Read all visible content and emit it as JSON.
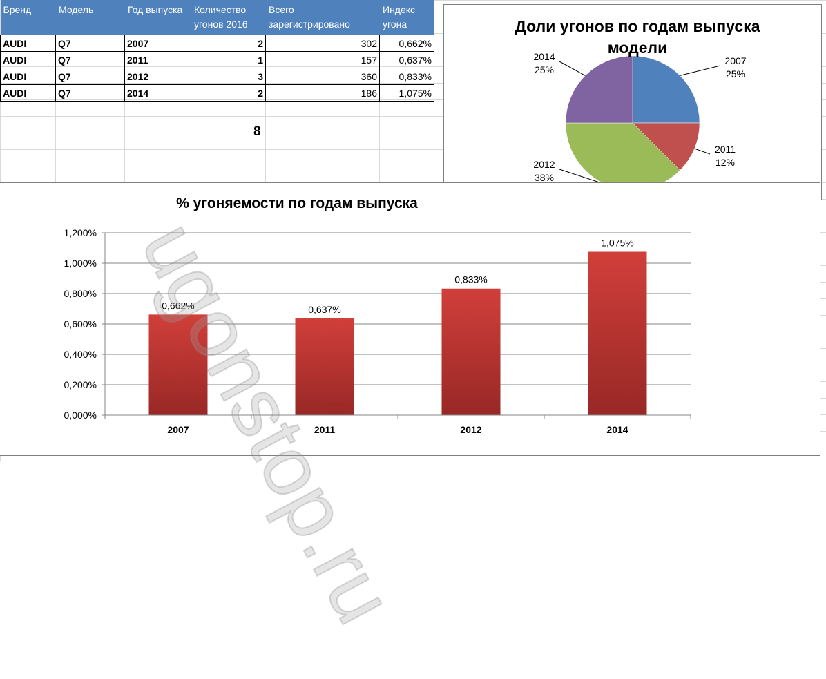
{
  "table": {
    "headers": [
      "Бренд",
      "Модель",
      "Год выпуска",
      "Количество угонов 2016",
      "Всего зарегистрировано",
      "Индекс угона"
    ],
    "rows": [
      [
        "AUDI",
        "Q7",
        "2007",
        "2",
        "302",
        "0,662%"
      ],
      [
        "AUDI",
        "Q7",
        "2011",
        "1",
        "157",
        "0,637%"
      ],
      [
        "AUDI",
        "Q7",
        "2012",
        "3",
        "360",
        "0,833%"
      ],
      [
        "AUDI",
        "Q7",
        "2014",
        "2",
        "186",
        "1,075%"
      ]
    ],
    "total": "8"
  },
  "watermark": "ugonstop.ru",
  "chart_data": [
    {
      "type": "pie",
      "title": "Доли угонов по годам выпуска модели",
      "categories": [
        "2007",
        "2011",
        "2012",
        "2014"
      ],
      "values": [
        2,
        1,
        3,
        2
      ],
      "labels": [
        "25%",
        "12%",
        "38%",
        "25%"
      ],
      "colors": [
        "#4f81bd",
        "#c0504d",
        "#9bbb59",
        "#8064a2"
      ]
    },
    {
      "type": "bar",
      "title": "% угоняемости по годам выпуска",
      "categories": [
        "2007",
        "2011",
        "2012",
        "2014"
      ],
      "values": [
        0.662,
        0.637,
        0.833,
        1.075
      ],
      "data_labels": [
        "0,662%",
        "0,637%",
        "0,833%",
        "1,075%"
      ],
      "yticks": [
        "0,000%",
        "0,200%",
        "0,400%",
        "0,600%",
        "0,800%",
        "1,000%",
        "1,200%"
      ],
      "ylim": [
        0,
        1.2
      ],
      "grid": true,
      "bar_color": "#c0504d"
    }
  ]
}
